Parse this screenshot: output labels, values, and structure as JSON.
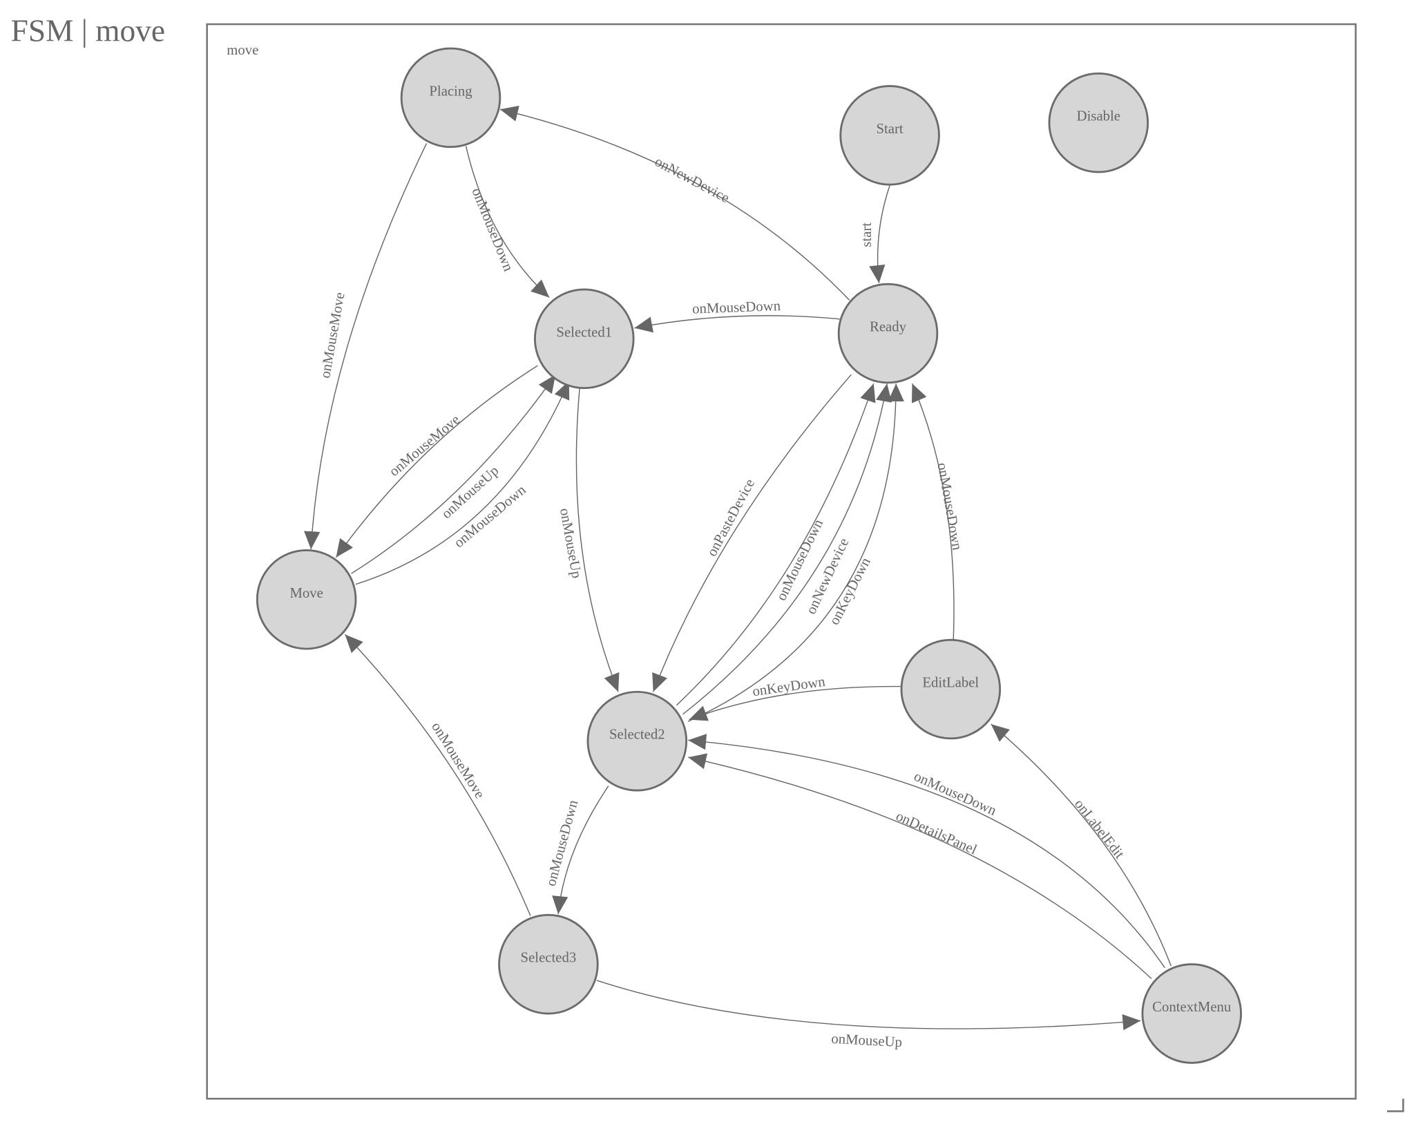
{
  "title": "FSM | move",
  "frame_label": "move",
  "colors": {
    "node_fill": "#d6d6d6",
    "stroke": "#6b6b6b",
    "text": "#666666"
  },
  "nodes": [
    {
      "id": "Placing",
      "label": "Placing"
    },
    {
      "id": "Start",
      "label": "Start"
    },
    {
      "id": "Disable",
      "label": "Disable"
    },
    {
      "id": "Selected1",
      "label": "Selected1"
    },
    {
      "id": "Ready",
      "label": "Ready"
    },
    {
      "id": "Move",
      "label": "Move"
    },
    {
      "id": "Selected2",
      "label": "Selected2"
    },
    {
      "id": "EditLabel",
      "label": "EditLabel"
    },
    {
      "id": "Selected3",
      "label": "Selected3"
    },
    {
      "id": "ContextMenu",
      "label": "ContextMenu"
    }
  ],
  "edges": [
    {
      "from": "Ready",
      "to": "Placing",
      "label": "onNewDevice"
    },
    {
      "from": "Placing",
      "to": "Selected1",
      "label": "onMouseDown"
    },
    {
      "from": "Placing",
      "to": "Move",
      "label": "onMouseMove"
    },
    {
      "from": "Start",
      "to": "Ready",
      "label": "start"
    },
    {
      "from": "Ready",
      "to": "Selected1",
      "label": "onMouseDown"
    },
    {
      "from": "Selected1",
      "to": "Move",
      "label": "onMouseMove"
    },
    {
      "from": "Move",
      "to": "Selected1",
      "label": "onMouseUp"
    },
    {
      "from": "Move",
      "to": "Selected1",
      "label": "onMouseDown"
    },
    {
      "from": "Selected1",
      "to": "Selected2",
      "label": "onMouseUp"
    },
    {
      "from": "Ready",
      "to": "Selected2",
      "label": "onPasteDevice"
    },
    {
      "from": "Selected2",
      "to": "Ready",
      "label": "onMouseDown"
    },
    {
      "from": "Selected2",
      "to": "Ready",
      "label": "onNewDevice"
    },
    {
      "from": "Selected2",
      "to": "Ready",
      "label": "onKeyDown"
    },
    {
      "from": "EditLabel",
      "to": "Ready",
      "label": "onMouseDown"
    },
    {
      "from": "EditLabel",
      "to": "Selected2",
      "label": "onKeyDown"
    },
    {
      "from": "ContextMenu",
      "to": "Selected2",
      "label": "onMouseDown"
    },
    {
      "from": "ContextMenu",
      "to": "Selected2",
      "label": "onDetailsPanel"
    },
    {
      "from": "ContextMenu",
      "to": "EditLabel",
      "label": "onLabelEdit"
    },
    {
      "from": "Selected2",
      "to": "Selected3",
      "label": "onMouseDown"
    },
    {
      "from": "Selected3",
      "to": "Move",
      "label": "onMouseMove"
    },
    {
      "from": "Selected3",
      "to": "ContextMenu",
      "label": "onMouseUp"
    }
  ]
}
